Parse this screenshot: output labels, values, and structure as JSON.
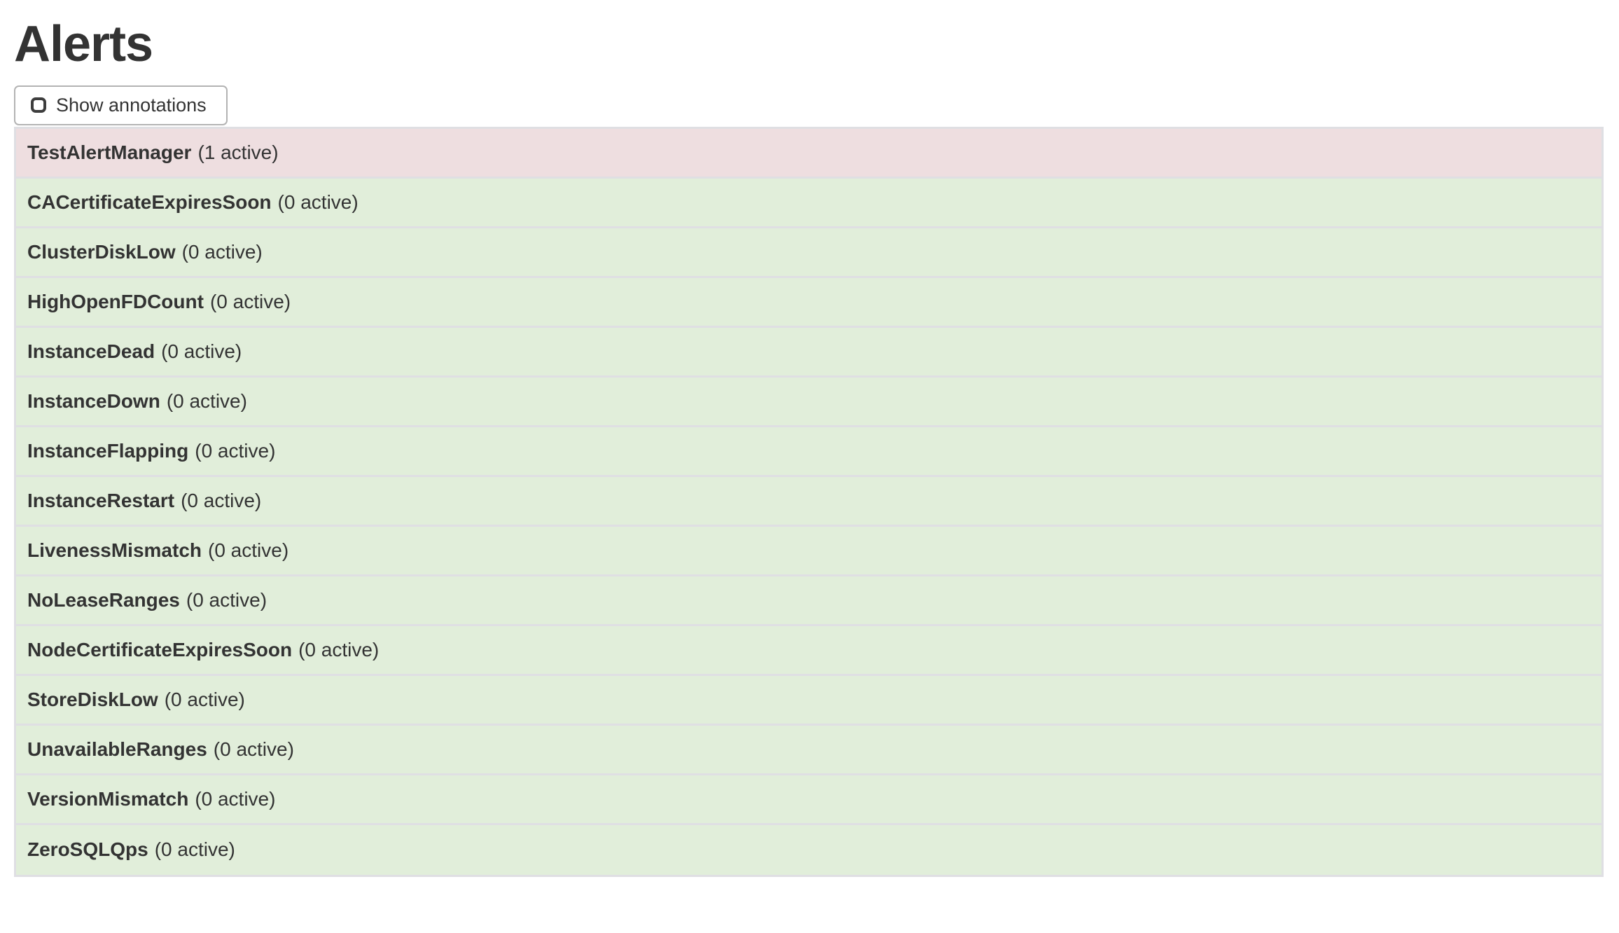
{
  "header": {
    "title": "Alerts"
  },
  "controls": {
    "show_annotations_label": "Show annotations",
    "checkbox_checked": false
  },
  "colors": {
    "firing_bg": "#eedee0",
    "inactive_bg": "#e1eeda",
    "divider": "#dfdfe3",
    "text": "#333333"
  },
  "alerts": {
    "items": [
      {
        "name": "TestAlertManager",
        "count_label": "(1 active)",
        "state": "firing"
      },
      {
        "name": "CACertificateExpiresSoon",
        "count_label": "(0 active)",
        "state": "inactive"
      },
      {
        "name": "ClusterDiskLow",
        "count_label": "(0 active)",
        "state": "inactive"
      },
      {
        "name": "HighOpenFDCount",
        "count_label": "(0 active)",
        "state": "inactive"
      },
      {
        "name": "InstanceDead",
        "count_label": "(0 active)",
        "state": "inactive"
      },
      {
        "name": "InstanceDown",
        "count_label": "(0 active)",
        "state": "inactive"
      },
      {
        "name": "InstanceFlapping",
        "count_label": "(0 active)",
        "state": "inactive"
      },
      {
        "name": "InstanceRestart",
        "count_label": "(0 active)",
        "state": "inactive"
      },
      {
        "name": "LivenessMismatch",
        "count_label": "(0 active)",
        "state": "inactive"
      },
      {
        "name": "NoLeaseRanges",
        "count_label": "(0 active)",
        "state": "inactive"
      },
      {
        "name": "NodeCertificateExpiresSoon",
        "count_label": "(0 active)",
        "state": "inactive"
      },
      {
        "name": "StoreDiskLow",
        "count_label": "(0 active)",
        "state": "inactive"
      },
      {
        "name": "UnavailableRanges",
        "count_label": "(0 active)",
        "state": "inactive"
      },
      {
        "name": "VersionMismatch",
        "count_label": "(0 active)",
        "state": "inactive"
      },
      {
        "name": "ZeroSQLQps",
        "count_label": "(0 active)",
        "state": "inactive"
      }
    ]
  }
}
